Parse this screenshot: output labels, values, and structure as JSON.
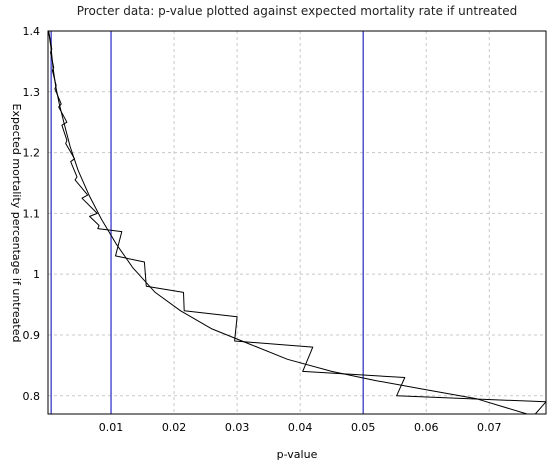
{
  "chart_data": {
    "type": "line",
    "title": "Procter data: p-value plotted against expected mortality rate if untreated",
    "xlabel": "p-value",
    "ylabel": "Expected mortality percentage if untreated",
    "xlim": [
      0.0,
      0.079
    ],
    "ylim": [
      0.77,
      1.4
    ],
    "x_ticks": [
      0.01,
      0.02,
      0.03,
      0.04,
      0.05,
      0.06,
      0.07
    ],
    "x_tick_labels": [
      "0.01",
      "0.02",
      "0.03",
      "0.04",
      "0.05",
      "0.06",
      "0.07"
    ],
    "y_ticks": [
      0.8,
      0.9,
      1.0,
      1.1,
      1.2,
      1.3,
      1.4
    ],
    "y_tick_labels": [
      "0.8",
      "0.9",
      "1",
      "1.1",
      "1.2",
      "1.3",
      "1.4"
    ],
    "grid": true,
    "reference_lines_x": [
      0.0005,
      0.01,
      0.05
    ],
    "reference_line_color": "#3a3ac8",
    "series": [
      {
        "color": "#000000",
        "points": [
          [
            0.0001,
            1.4
          ],
          [
            0.0005,
            1.37
          ],
          [
            0.0008,
            1.34
          ],
          [
            0.0012,
            1.31
          ],
          [
            0.0018,
            1.28
          ],
          [
            0.0025,
            1.25
          ],
          [
            0.0035,
            1.21
          ],
          [
            0.0048,
            1.17
          ],
          [
            0.0065,
            1.13
          ],
          [
            0.0085,
            1.09
          ],
          [
            0.0108,
            1.05
          ],
          [
            0.0135,
            1.01
          ],
          [
            0.017,
            0.97
          ],
          [
            0.021,
            0.94
          ],
          [
            0.026,
            0.91
          ],
          [
            0.032,
            0.885
          ],
          [
            0.038,
            0.86
          ],
          [
            0.045,
            0.84
          ],
          [
            0.052,
            0.825
          ],
          [
            0.06,
            0.81
          ],
          [
            0.068,
            0.795
          ],
          [
            0.076,
            0.77
          ]
        ]
      },
      {
        "color": "#000000",
        "points": [
          [
            0.0001,
            1.4
          ],
          [
            0.0006,
            1.37
          ],
          [
            0.0004,
            1.365
          ],
          [
            0.0009,
            1.34
          ],
          [
            0.0007,
            1.335
          ],
          [
            0.0013,
            1.31
          ],
          [
            0.0011,
            1.305
          ],
          [
            0.0021,
            1.28
          ],
          [
            0.0017,
            1.275
          ],
          [
            0.003,
            1.25
          ],
          [
            0.0022,
            1.245
          ],
          [
            0.003,
            1.22
          ],
          [
            0.0028,
            1.215
          ],
          [
            0.0042,
            1.19
          ],
          [
            0.0036,
            1.185
          ],
          [
            0.0046,
            1.16
          ],
          [
            0.0043,
            1.155
          ],
          [
            0.0063,
            1.13
          ],
          [
            0.0054,
            1.125
          ],
          [
            0.0078,
            1.1
          ],
          [
            0.0066,
            1.095
          ],
          [
            0.0081,
            1.08
          ],
          [
            0.0079,
            1.075
          ],
          [
            0.0117,
            1.07
          ],
          [
            0.0107,
            1.03
          ],
          [
            0.0153,
            1.02
          ],
          [
            0.0156,
            0.98
          ],
          [
            0.0215,
            0.97
          ],
          [
            0.0216,
            0.94
          ],
          [
            0.03,
            0.93
          ],
          [
            0.0296,
            0.89
          ],
          [
            0.042,
            0.88
          ],
          [
            0.0404,
            0.84
          ],
          [
            0.0566,
            0.83
          ],
          [
            0.0553,
            0.8
          ],
          [
            0.079,
            0.79
          ],
          [
            0.0773,
            0.77
          ]
        ]
      }
    ]
  }
}
